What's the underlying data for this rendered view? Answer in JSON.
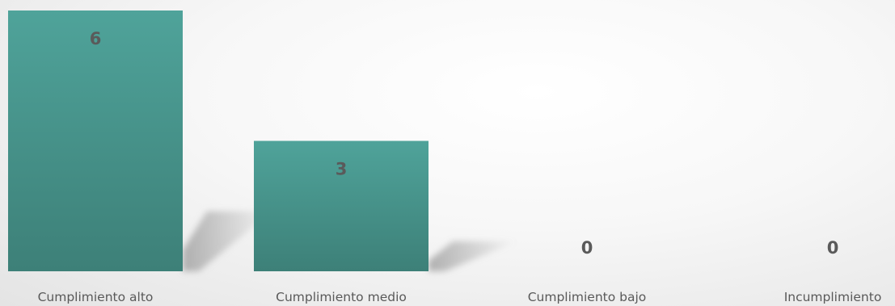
{
  "chart_data": {
    "type": "bar",
    "categories": [
      "Cumplimiento alto",
      "Cumplimiento medio",
      "Cumplimiento bajo",
      "Incumplimiento"
    ],
    "values": [
      6,
      3,
      0,
      0
    ],
    "data_labels": [
      "6",
      "3",
      "0",
      "0"
    ],
    "ylim": [
      0,
      6
    ],
    "grid": false,
    "legend": "none",
    "colors": {
      "bar_top": "#4fa39a",
      "bar_bottom": "#3d8078",
      "shadow": "#9a9a9a",
      "label_text": "#5a5a5a",
      "category_text": "#595959"
    }
  }
}
